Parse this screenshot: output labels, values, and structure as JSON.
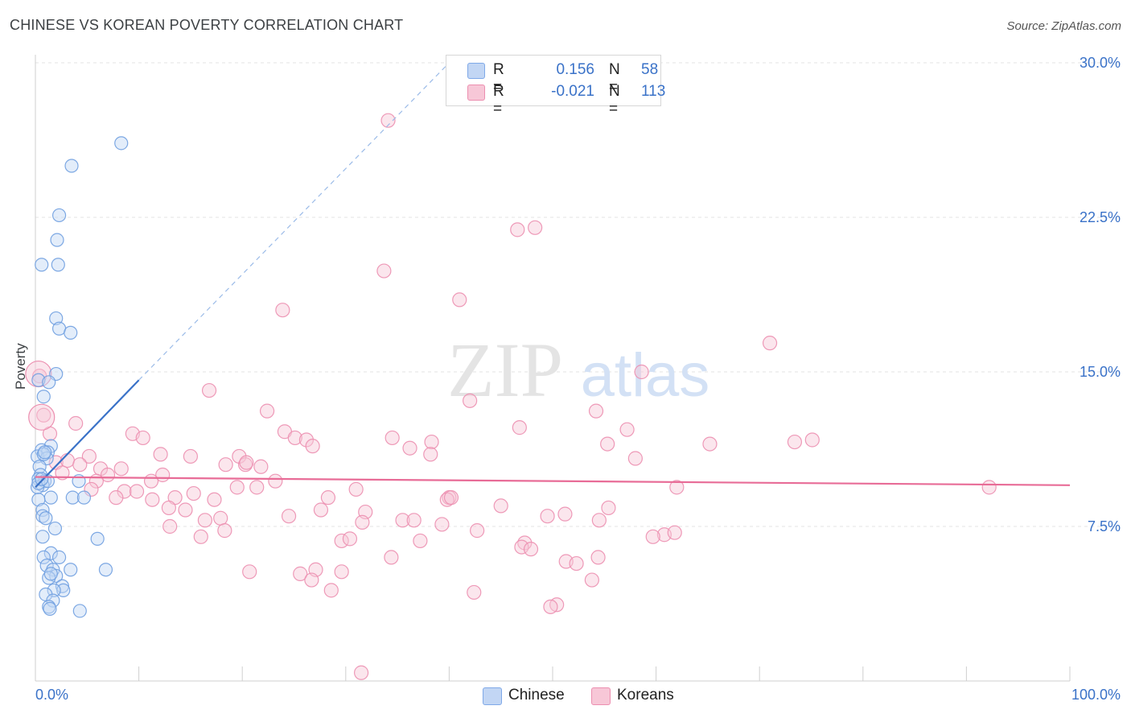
{
  "title": "CHINESE VS KOREAN POVERTY CORRELATION CHART",
  "source": "Source: ZipAtlas.com",
  "watermark": {
    "zip": "ZIP",
    "atlas": "atlas"
  },
  "legend": {
    "rows": [
      {
        "r_label": "R =",
        "r_value": "0.156",
        "n_label": "N =",
        "n_value": "58",
        "color": "#7fa9e8",
        "fill": "#c2d6f4"
      },
      {
        "r_label": "R =",
        "r_value": "-0.021",
        "n_label": "N =",
        "n_value": "113",
        "color": "#ec8fb0",
        "fill": "#f7c7d7"
      }
    ]
  },
  "bottom_legend": [
    {
      "label": "Chinese",
      "color": "#7fa9e8",
      "fill": "#c2d6f4"
    },
    {
      "label": "Koreans",
      "color": "#ec8fb0",
      "fill": "#f7c7d7"
    }
  ],
  "chart_data": {
    "type": "scatter",
    "title": "CHINESE VS KOREAN POVERTY CORRELATION CHART",
    "xlabel": "",
    "ylabel": "Poverty",
    "xlim": [
      0,
      100
    ],
    "ylim": [
      0,
      30
    ],
    "x_tick_labels": [
      "0.0%",
      "100.0%"
    ],
    "y_ticks": [
      7.5,
      15.0,
      22.5,
      30.0
    ],
    "y_tick_labels": [
      "7.5%",
      "15.0%",
      "22.5%",
      "30.0%"
    ],
    "grid": "horizontal dashed",
    "legend_position": "top-center",
    "series": [
      {
        "name": "Chinese",
        "color": "#6f9fe0",
        "trend": {
          "x": [
            0,
            10
          ],
          "y": [
            9.4,
            14.6
          ],
          "dashed_extension_to": [
            40,
            30
          ]
        },
        "points": [
          [
            8.3,
            26.1
          ],
          [
            3.5,
            25.0
          ],
          [
            2.3,
            22.6
          ],
          [
            2.1,
            21.4
          ],
          [
            0.6,
            20.2
          ],
          [
            2.2,
            20.2
          ],
          [
            2.0,
            17.6
          ],
          [
            2.3,
            17.1
          ],
          [
            3.4,
            16.9
          ],
          [
            2.0,
            14.9
          ],
          [
            0.3,
            14.6
          ],
          [
            1.3,
            14.5
          ],
          [
            0.8,
            13.8
          ],
          [
            1.5,
            11.4
          ],
          [
            0.6,
            11.2
          ],
          [
            1.2,
            11.1
          ],
          [
            0.2,
            10.9
          ],
          [
            1.1,
            10.8
          ],
          [
            0.4,
            10.4
          ],
          [
            0.5,
            10.0
          ],
          [
            0.3,
            9.8
          ],
          [
            0.9,
            9.7
          ],
          [
            0.7,
            9.5
          ],
          [
            0.2,
            9.4
          ],
          [
            4.2,
            9.7
          ],
          [
            3.6,
            8.9
          ],
          [
            1.5,
            8.9
          ],
          [
            4.7,
            8.9
          ],
          [
            0.3,
            8.8
          ],
          [
            0.7,
            8.3
          ],
          [
            0.7,
            8.0
          ],
          [
            1.0,
            7.9
          ],
          [
            1.9,
            7.4
          ],
          [
            0.7,
            7.0
          ],
          [
            6.0,
            6.9
          ],
          [
            1.5,
            6.2
          ],
          [
            0.8,
            6.0
          ],
          [
            2.3,
            6.0
          ],
          [
            1.1,
            5.6
          ],
          [
            1.7,
            5.4
          ],
          [
            3.4,
            5.4
          ],
          [
            6.8,
            5.4
          ],
          [
            2.0,
            5.1
          ],
          [
            1.3,
            5.0
          ],
          [
            1.5,
            5.2
          ],
          [
            2.6,
            4.6
          ],
          [
            2.7,
            4.4
          ],
          [
            1.8,
            4.4
          ],
          [
            1.0,
            4.2
          ],
          [
            1.7,
            3.9
          ],
          [
            1.3,
            3.6
          ],
          [
            1.4,
            3.5
          ],
          [
            4.3,
            3.4
          ],
          [
            0.8,
            11.0
          ],
          [
            0.3,
            9.6
          ],
          [
            1.2,
            9.7
          ],
          [
            0.9,
            11.1
          ],
          [
            0.6,
            9.8
          ]
        ]
      },
      {
        "name": "Koreans",
        "color": "#ec8fb0",
        "trend": {
          "x": [
            0,
            100
          ],
          "y": [
            9.9,
            9.5
          ]
        },
        "points": [
          [
            34.1,
            27.2
          ],
          [
            48.3,
            22.0
          ],
          [
            46.6,
            21.9
          ],
          [
            33.7,
            19.9
          ],
          [
            41.0,
            18.5
          ],
          [
            23.9,
            18.0
          ],
          [
            71.0,
            16.4
          ],
          [
            58.6,
            15.0
          ],
          [
            0.4,
            14.8
          ],
          [
            16.8,
            14.1
          ],
          [
            42.0,
            13.6
          ],
          [
            0.8,
            12.9
          ],
          [
            22.4,
            13.1
          ],
          [
            54.2,
            13.1
          ],
          [
            3.9,
            12.5
          ],
          [
            46.8,
            12.3
          ],
          [
            57.2,
            12.2
          ],
          [
            1.4,
            12.0
          ],
          [
            9.4,
            12.0
          ],
          [
            10.4,
            11.8
          ],
          [
            24.1,
            12.1
          ],
          [
            25.1,
            11.8
          ],
          [
            26.2,
            11.7
          ],
          [
            34.5,
            11.8
          ],
          [
            38.3,
            11.6
          ],
          [
            26.8,
            11.4
          ],
          [
            36.2,
            11.3
          ],
          [
            55.3,
            11.5
          ],
          [
            65.2,
            11.5
          ],
          [
            73.4,
            11.6
          ],
          [
            75.1,
            11.7
          ],
          [
            12.1,
            11.0
          ],
          [
            15.0,
            10.9
          ],
          [
            19.7,
            10.9
          ],
          [
            38.2,
            11.0
          ],
          [
            5.2,
            10.9
          ],
          [
            2.0,
            10.6
          ],
          [
            3.1,
            10.7
          ],
          [
            4.3,
            10.5
          ],
          [
            18.4,
            10.5
          ],
          [
            20.3,
            10.5
          ],
          [
            21.8,
            10.4
          ],
          [
            6.3,
            10.3
          ],
          [
            8.3,
            10.3
          ],
          [
            2.6,
            10.1
          ],
          [
            7.0,
            10.0
          ],
          [
            12.3,
            10.0
          ],
          [
            58.0,
            10.8
          ],
          [
            5.9,
            9.7
          ],
          [
            11.2,
            9.7
          ],
          [
            23.2,
            9.7
          ],
          [
            19.5,
            9.4
          ],
          [
            21.4,
            9.4
          ],
          [
            31.0,
            9.3
          ],
          [
            8.6,
            9.2
          ],
          [
            9.8,
            9.2
          ],
          [
            15.3,
            9.1
          ],
          [
            5.4,
            9.3
          ],
          [
            62.0,
            9.4
          ],
          [
            92.2,
            9.4
          ],
          [
            7.8,
            8.9
          ],
          [
            11.3,
            8.8
          ],
          [
            13.5,
            8.9
          ],
          [
            17.3,
            8.8
          ],
          [
            28.3,
            8.9
          ],
          [
            40.0,
            8.9
          ],
          [
            39.8,
            8.8
          ],
          [
            45.0,
            8.5
          ],
          [
            55.4,
            8.4
          ],
          [
            12.9,
            8.4
          ],
          [
            14.5,
            8.3
          ],
          [
            27.6,
            8.3
          ],
          [
            31.9,
            8.2
          ],
          [
            24.5,
            8.0
          ],
          [
            49.5,
            8.0
          ],
          [
            51.2,
            8.1
          ],
          [
            16.4,
            7.8
          ],
          [
            17.9,
            7.9
          ],
          [
            31.6,
            7.7
          ],
          [
            35.5,
            7.8
          ],
          [
            36.6,
            7.8
          ],
          [
            39.3,
            7.6
          ],
          [
            54.5,
            7.8
          ],
          [
            13.0,
            7.5
          ],
          [
            18.3,
            7.3
          ],
          [
            42.7,
            7.3
          ],
          [
            16.0,
            7.0
          ],
          [
            60.8,
            7.1
          ],
          [
            61.8,
            7.2
          ],
          [
            59.7,
            7.0
          ],
          [
            29.6,
            6.8
          ],
          [
            30.4,
            6.9
          ],
          [
            37.2,
            6.8
          ],
          [
            47.3,
            6.7
          ],
          [
            47.0,
            6.5
          ],
          [
            34.4,
            6.0
          ],
          [
            51.3,
            5.8
          ],
          [
            54.4,
            6.0
          ],
          [
            52.3,
            5.7
          ],
          [
            20.7,
            5.3
          ],
          [
            25.6,
            5.2
          ],
          [
            27.1,
            5.4
          ],
          [
            29.6,
            5.3
          ],
          [
            26.7,
            4.9
          ],
          [
            53.8,
            4.9
          ],
          [
            28.6,
            4.4
          ],
          [
            42.4,
            4.3
          ],
          [
            50.4,
            3.7
          ],
          [
            49.8,
            3.6
          ],
          [
            31.5,
            0.4
          ],
          [
            47.9,
            6.4
          ],
          [
            40.2,
            8.9
          ],
          [
            20.4,
            10.6
          ]
        ]
      }
    ]
  }
}
